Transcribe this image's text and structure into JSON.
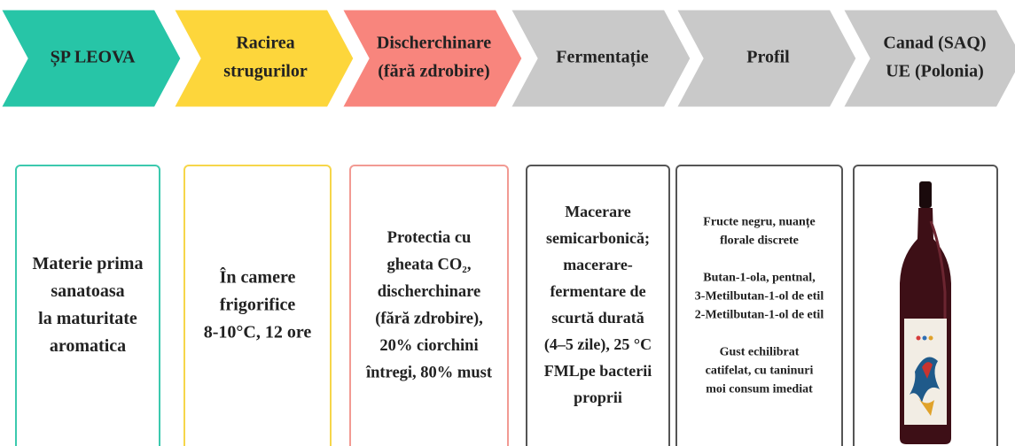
{
  "steps": [
    {
      "title": [
        "ȘP LEOVA"
      ],
      "text": [
        [
          "Materie prima",
          "sanatoasa",
          "la maturitate",
          "aromatica"
        ]
      ]
    },
    {
      "title": [
        "Racirea",
        "strugurilor"
      ],
      "text": [
        [
          "În camere",
          "frigorifice",
          "8-10°C, 12 ore"
        ]
      ]
    },
    {
      "title": [
        "Discherchinare",
        "(fără zdrobire)"
      ],
      "text": [
        [
          "Protectia cu",
          "gheata CO₂,",
          "discherchinare",
          "(fără zdrobire),",
          "20% ciorchini",
          "întregi, 80% must"
        ]
      ]
    },
    {
      "title": [
        "Fermentație"
      ],
      "text": [
        [
          "Macerare",
          "semicarbonică;",
          "macerare-",
          "fermentare de",
          "scurtă durată",
          "(4–5 zile), 25 °C",
          "FMLpe bacterii",
          "proprii"
        ]
      ]
    },
    {
      "title": [
        "Profil"
      ],
      "text": [
        [
          "Fructe negru, nuanțe",
          "florale discrete"
        ],
        [
          "Butan-1-ola, pentnal,",
          "3-Metilbutan-1-ol de etil",
          "2-Metilbutan-1-ol de etil"
        ],
        [
          "Gust echilibrat",
          "catifelat, cu taninuri",
          "moi consum imediat"
        ]
      ]
    },
    {
      "title": [
        "Canad (SAQ)",
        "UE (Polonia)"
      ]
    }
  ]
}
